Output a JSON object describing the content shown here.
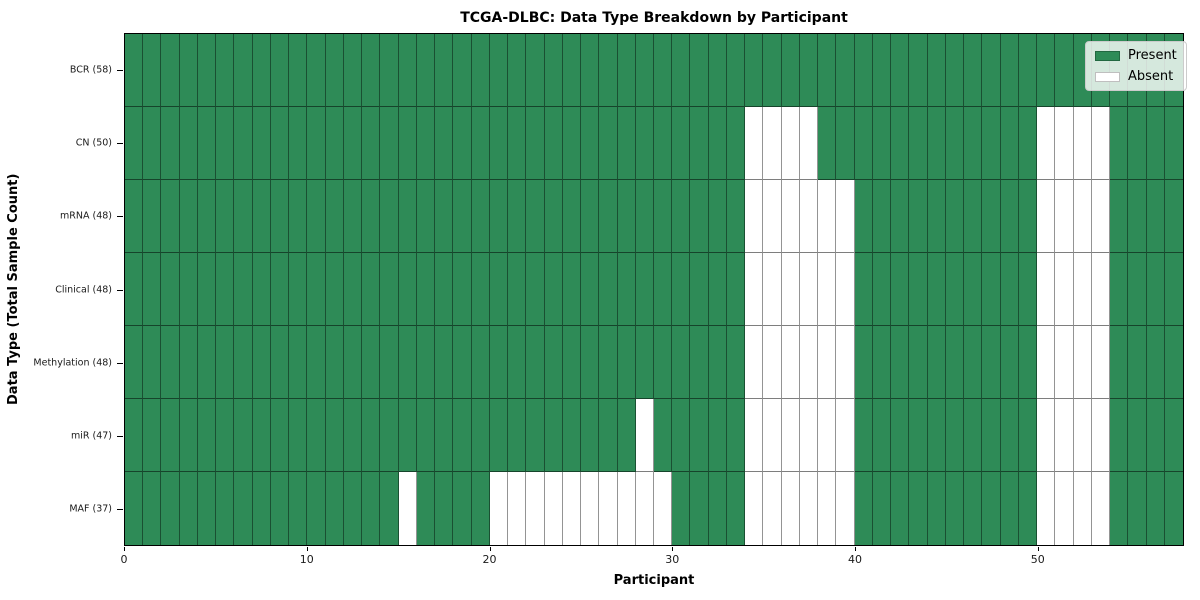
{
  "chart_data": {
    "type": "heatmap",
    "title": "TCGA-DLBC: Data Type Breakdown by Participant",
    "xlabel": "Participant",
    "ylabel": "Data Type (Total Sample Count)",
    "n_participants": 58,
    "xlim": [
      0,
      58
    ],
    "x_ticks": [
      0,
      10,
      20,
      30,
      40,
      50
    ],
    "grid": true,
    "legend_position": "upper right",
    "legend": [
      {
        "label": "Present",
        "color": "#2e8b57"
      },
      {
        "label": "Absent",
        "color": "#ffffff"
      }
    ],
    "colors": {
      "present": "#2e8b57",
      "absent": "#ffffff",
      "gridline": "rgba(0,0,0,0.45)"
    },
    "rows": [
      {
        "label": "BCR (58)",
        "data_type": "BCR",
        "present_count": 58,
        "absent_participants": []
      },
      {
        "label": "CN (50)",
        "data_type": "CN",
        "present_count": 50,
        "absent_participants": [
          34,
          35,
          36,
          37,
          50,
          51,
          52,
          53
        ]
      },
      {
        "label": "mRNA (48)",
        "data_type": "mRNA",
        "present_count": 48,
        "absent_participants": [
          34,
          35,
          36,
          37,
          38,
          39,
          50,
          51,
          52,
          53
        ]
      },
      {
        "label": "Clinical (48)",
        "data_type": "Clinical",
        "present_count": 48,
        "absent_participants": [
          34,
          35,
          36,
          37,
          38,
          39,
          50,
          51,
          52,
          53
        ]
      },
      {
        "label": "Methylation (48)",
        "data_type": "Methylation",
        "present_count": 48,
        "absent_participants": [
          34,
          35,
          36,
          37,
          38,
          39,
          50,
          51,
          52,
          53
        ]
      },
      {
        "label": "miR (47)",
        "data_type": "miR",
        "present_count": 47,
        "absent_participants": [
          28,
          34,
          35,
          36,
          37,
          38,
          39,
          50,
          51,
          52,
          53
        ]
      },
      {
        "label": "MAF (37)",
        "data_type": "MAF",
        "present_count": 37,
        "absent_participants": [
          15,
          20,
          21,
          22,
          23,
          24,
          25,
          26,
          27,
          28,
          29,
          34,
          35,
          36,
          37,
          38,
          39,
          50,
          51,
          52,
          53
        ]
      }
    ]
  }
}
